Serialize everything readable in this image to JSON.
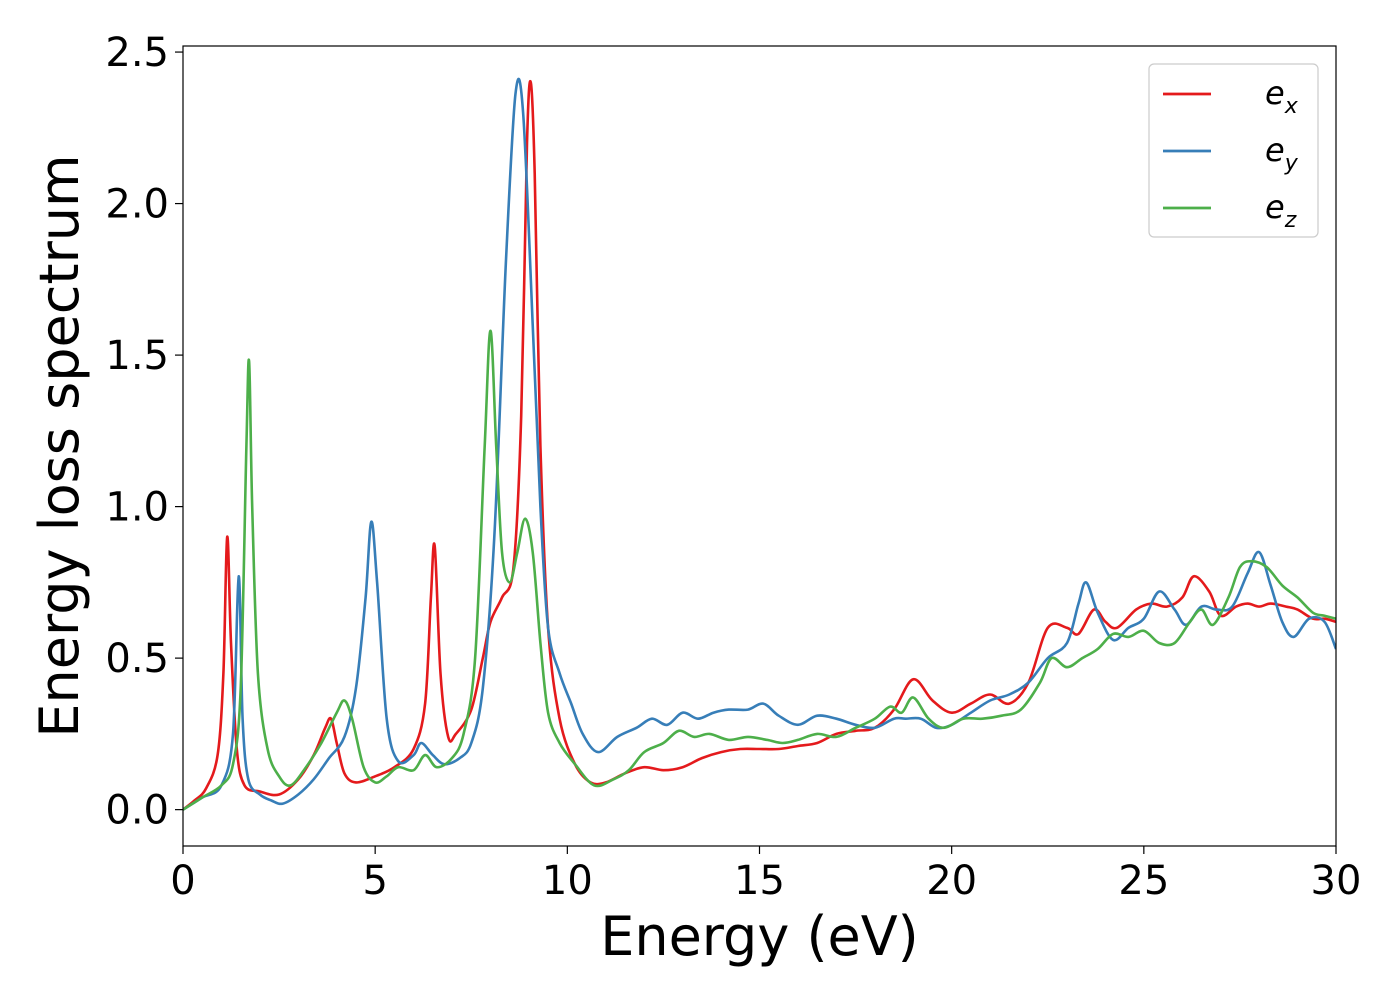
{
  "chart_data": {
    "type": "line",
    "title": "",
    "xlabel": "Energy (eV)",
    "ylabel": "Energy loss spectrum",
    "xlim": [
      0,
      30
    ],
    "ylim": [
      -0.12,
      2.52
    ],
    "xticks": [
      0,
      5,
      10,
      15,
      20,
      25,
      30
    ],
    "xtick_labels": [
      "0",
      "5",
      "10",
      "15",
      "20",
      "25",
      "30"
    ],
    "yticks": [
      0.0,
      0.5,
      1.0,
      1.5,
      2.0,
      2.5
    ],
    "ytick_labels": [
      "0.0",
      "0.5",
      "1.0",
      "1.5",
      "2.0",
      "2.5"
    ],
    "grid": false,
    "legend_position": "top-right",
    "series": [
      {
        "name": "e_x",
        "legend_base": "e",
        "legend_sub": "x",
        "color": "#e41a1c",
        "points": [
          [
            0,
            0
          ],
          [
            0.3,
            0.03
          ],
          [
            0.6,
            0.07
          ],
          [
            0.9,
            0.18
          ],
          [
            1.05,
            0.45
          ],
          [
            1.15,
            0.9
          ],
          [
            1.25,
            0.55
          ],
          [
            1.4,
            0.2
          ],
          [
            1.6,
            0.08
          ],
          [
            2.0,
            0.06
          ],
          [
            2.5,
            0.05
          ],
          [
            3.0,
            0.1
          ],
          [
            3.4,
            0.18
          ],
          [
            3.7,
            0.27
          ],
          [
            3.85,
            0.3
          ],
          [
            4.0,
            0.22
          ],
          [
            4.2,
            0.12
          ],
          [
            4.5,
            0.09
          ],
          [
            5.0,
            0.11
          ],
          [
            5.5,
            0.14
          ],
          [
            6.0,
            0.2
          ],
          [
            6.3,
            0.35
          ],
          [
            6.45,
            0.7
          ],
          [
            6.55,
            0.87
          ],
          [
            6.7,
            0.45
          ],
          [
            6.9,
            0.24
          ],
          [
            7.1,
            0.25
          ],
          [
            7.5,
            0.33
          ],
          [
            7.8,
            0.5
          ],
          [
            8.0,
            0.62
          ],
          [
            8.3,
            0.7
          ],
          [
            8.6,
            0.8
          ],
          [
            8.8,
            1.3
          ],
          [
            8.95,
            2.2
          ],
          [
            9.05,
            2.4
          ],
          [
            9.15,
            2.1
          ],
          [
            9.3,
            1.2
          ],
          [
            9.5,
            0.6
          ],
          [
            9.8,
            0.3
          ],
          [
            10.2,
            0.15
          ],
          [
            10.6,
            0.09
          ],
          [
            11.0,
            0.09
          ],
          [
            11.5,
            0.12
          ],
          [
            12.0,
            0.14
          ],
          [
            12.5,
            0.13
          ],
          [
            13.0,
            0.14
          ],
          [
            13.5,
            0.17
          ],
          [
            14.0,
            0.19
          ],
          [
            14.5,
            0.2
          ],
          [
            15.0,
            0.2
          ],
          [
            15.5,
            0.2
          ],
          [
            16.0,
            0.21
          ],
          [
            16.5,
            0.22
          ],
          [
            17.0,
            0.25
          ],
          [
            17.5,
            0.26
          ],
          [
            18.0,
            0.27
          ],
          [
            18.5,
            0.33
          ],
          [
            19.0,
            0.43
          ],
          [
            19.5,
            0.36
          ],
          [
            20.0,
            0.32
          ],
          [
            20.5,
            0.35
          ],
          [
            21.0,
            0.38
          ],
          [
            21.5,
            0.35
          ],
          [
            22.0,
            0.42
          ],
          [
            22.5,
            0.6
          ],
          [
            23.0,
            0.6
          ],
          [
            23.3,
            0.58
          ],
          [
            23.7,
            0.66
          ],
          [
            24.0,
            0.62
          ],
          [
            24.3,
            0.6
          ],
          [
            24.8,
            0.66
          ],
          [
            25.2,
            0.68
          ],
          [
            25.6,
            0.67
          ],
          [
            26.0,
            0.7
          ],
          [
            26.3,
            0.77
          ],
          [
            26.7,
            0.72
          ],
          [
            27.0,
            0.64
          ],
          [
            27.4,
            0.67
          ],
          [
            27.7,
            0.68
          ],
          [
            28.0,
            0.67
          ],
          [
            28.3,
            0.68
          ],
          [
            28.7,
            0.67
          ],
          [
            29.0,
            0.66
          ],
          [
            29.4,
            0.63
          ],
          [
            29.7,
            0.63
          ],
          [
            30.0,
            0.62
          ]
        ]
      },
      {
        "name": "e_y",
        "legend_base": "e",
        "legend_sub": "y",
        "color": "#377eb8",
        "points": [
          [
            0,
            0
          ],
          [
            0.5,
            0.04
          ],
          [
            1.0,
            0.08
          ],
          [
            1.3,
            0.25
          ],
          [
            1.45,
            0.77
          ],
          [
            1.55,
            0.3
          ],
          [
            1.7,
            0.1
          ],
          [
            2.0,
            0.05
          ],
          [
            2.3,
            0.03
          ],
          [
            2.6,
            0.02
          ],
          [
            3.0,
            0.05
          ],
          [
            3.4,
            0.1
          ],
          [
            3.8,
            0.17
          ],
          [
            4.2,
            0.24
          ],
          [
            4.5,
            0.4
          ],
          [
            4.75,
            0.7
          ],
          [
            4.9,
            0.95
          ],
          [
            5.05,
            0.75
          ],
          [
            5.3,
            0.3
          ],
          [
            5.6,
            0.16
          ],
          [
            6.0,
            0.18
          ],
          [
            6.2,
            0.22
          ],
          [
            6.5,
            0.18
          ],
          [
            6.8,
            0.15
          ],
          [
            7.2,
            0.17
          ],
          [
            7.5,
            0.22
          ],
          [
            7.8,
            0.4
          ],
          [
            8.1,
            0.9
          ],
          [
            8.4,
            1.8
          ],
          [
            8.65,
            2.36
          ],
          [
            8.85,
            2.3
          ],
          [
            9.1,
            1.6
          ],
          [
            9.3,
            1.0
          ],
          [
            9.5,
            0.6
          ],
          [
            9.8,
            0.45
          ],
          [
            10.1,
            0.35
          ],
          [
            10.4,
            0.25
          ],
          [
            10.8,
            0.19
          ],
          [
            11.3,
            0.24
          ],
          [
            11.8,
            0.27
          ],
          [
            12.2,
            0.3
          ],
          [
            12.6,
            0.28
          ],
          [
            13.0,
            0.32
          ],
          [
            13.4,
            0.3
          ],
          [
            13.8,
            0.32
          ],
          [
            14.2,
            0.33
          ],
          [
            14.7,
            0.33
          ],
          [
            15.1,
            0.35
          ],
          [
            15.5,
            0.31
          ],
          [
            16.0,
            0.28
          ],
          [
            16.5,
            0.31
          ],
          [
            17.0,
            0.3
          ],
          [
            17.5,
            0.28
          ],
          [
            18.0,
            0.27
          ],
          [
            18.5,
            0.3
          ],
          [
            18.8,
            0.3
          ],
          [
            19.2,
            0.3
          ],
          [
            19.6,
            0.27
          ],
          [
            20.0,
            0.28
          ],
          [
            20.5,
            0.32
          ],
          [
            21.0,
            0.36
          ],
          [
            21.5,
            0.38
          ],
          [
            22.0,
            0.42
          ],
          [
            22.5,
            0.5
          ],
          [
            23.0,
            0.55
          ],
          [
            23.3,
            0.68
          ],
          [
            23.5,
            0.75
          ],
          [
            23.8,
            0.65
          ],
          [
            24.2,
            0.56
          ],
          [
            24.6,
            0.6
          ],
          [
            25.0,
            0.63
          ],
          [
            25.4,
            0.72
          ],
          [
            25.8,
            0.66
          ],
          [
            26.1,
            0.61
          ],
          [
            26.5,
            0.67
          ],
          [
            26.9,
            0.66
          ],
          [
            27.3,
            0.67
          ],
          [
            27.7,
            0.78
          ],
          [
            28.0,
            0.85
          ],
          [
            28.3,
            0.74
          ],
          [
            28.6,
            0.62
          ],
          [
            28.9,
            0.57
          ],
          [
            29.3,
            0.63
          ],
          [
            29.7,
            0.62
          ],
          [
            30.0,
            0.53
          ]
        ]
      },
      {
        "name": "e_z",
        "legend_base": "e",
        "legend_sub": "z",
        "color": "#4daf4a",
        "points": [
          [
            0,
            0
          ],
          [
            0.5,
            0.04
          ],
          [
            1.0,
            0.08
          ],
          [
            1.3,
            0.15
          ],
          [
            1.5,
            0.4
          ],
          [
            1.65,
            1.2
          ],
          [
            1.72,
            1.48
          ],
          [
            1.8,
            1.0
          ],
          [
            1.95,
            0.45
          ],
          [
            2.2,
            0.2
          ],
          [
            2.5,
            0.11
          ],
          [
            2.8,
            0.08
          ],
          [
            3.2,
            0.14
          ],
          [
            3.6,
            0.22
          ],
          [
            4.0,
            0.32
          ],
          [
            4.2,
            0.36
          ],
          [
            4.4,
            0.3
          ],
          [
            4.7,
            0.14
          ],
          [
            5.0,
            0.09
          ],
          [
            5.3,
            0.11
          ],
          [
            5.6,
            0.14
          ],
          [
            6.0,
            0.13
          ],
          [
            6.3,
            0.18
          ],
          [
            6.6,
            0.14
          ],
          [
            7.0,
            0.17
          ],
          [
            7.3,
            0.25
          ],
          [
            7.6,
            0.5
          ],
          [
            7.85,
            1.2
          ],
          [
            8.0,
            1.58
          ],
          [
            8.15,
            1.2
          ],
          [
            8.3,
            0.85
          ],
          [
            8.5,
            0.75
          ],
          [
            8.7,
            0.85
          ],
          [
            8.9,
            0.96
          ],
          [
            9.1,
            0.85
          ],
          [
            9.3,
            0.55
          ],
          [
            9.5,
            0.32
          ],
          [
            9.8,
            0.22
          ],
          [
            10.2,
            0.15
          ],
          [
            10.7,
            0.08
          ],
          [
            11.2,
            0.1
          ],
          [
            11.6,
            0.13
          ],
          [
            12.0,
            0.19
          ],
          [
            12.5,
            0.22
          ],
          [
            12.9,
            0.26
          ],
          [
            13.3,
            0.24
          ],
          [
            13.7,
            0.25
          ],
          [
            14.2,
            0.23
          ],
          [
            14.7,
            0.24
          ],
          [
            15.2,
            0.23
          ],
          [
            15.6,
            0.22
          ],
          [
            16.0,
            0.23
          ],
          [
            16.5,
            0.25
          ],
          [
            17.0,
            0.24
          ],
          [
            17.5,
            0.27
          ],
          [
            18.0,
            0.3
          ],
          [
            18.4,
            0.34
          ],
          [
            18.7,
            0.32
          ],
          [
            19.0,
            0.37
          ],
          [
            19.4,
            0.3
          ],
          [
            19.8,
            0.27
          ],
          [
            20.3,
            0.3
          ],
          [
            20.8,
            0.3
          ],
          [
            21.3,
            0.31
          ],
          [
            21.8,
            0.33
          ],
          [
            22.3,
            0.42
          ],
          [
            22.6,
            0.5
          ],
          [
            23.0,
            0.47
          ],
          [
            23.4,
            0.5
          ],
          [
            23.8,
            0.53
          ],
          [
            24.2,
            0.58
          ],
          [
            24.6,
            0.57
          ],
          [
            25.0,
            0.59
          ],
          [
            25.4,
            0.55
          ],
          [
            25.8,
            0.55
          ],
          [
            26.2,
            0.62
          ],
          [
            26.5,
            0.66
          ],
          [
            26.8,
            0.61
          ],
          [
            27.2,
            0.7
          ],
          [
            27.5,
            0.8
          ],
          [
            27.8,
            0.82
          ],
          [
            28.2,
            0.8
          ],
          [
            28.6,
            0.74
          ],
          [
            29.0,
            0.7
          ],
          [
            29.4,
            0.65
          ],
          [
            29.7,
            0.64
          ],
          [
            30.0,
            0.63
          ]
        ]
      }
    ]
  }
}
